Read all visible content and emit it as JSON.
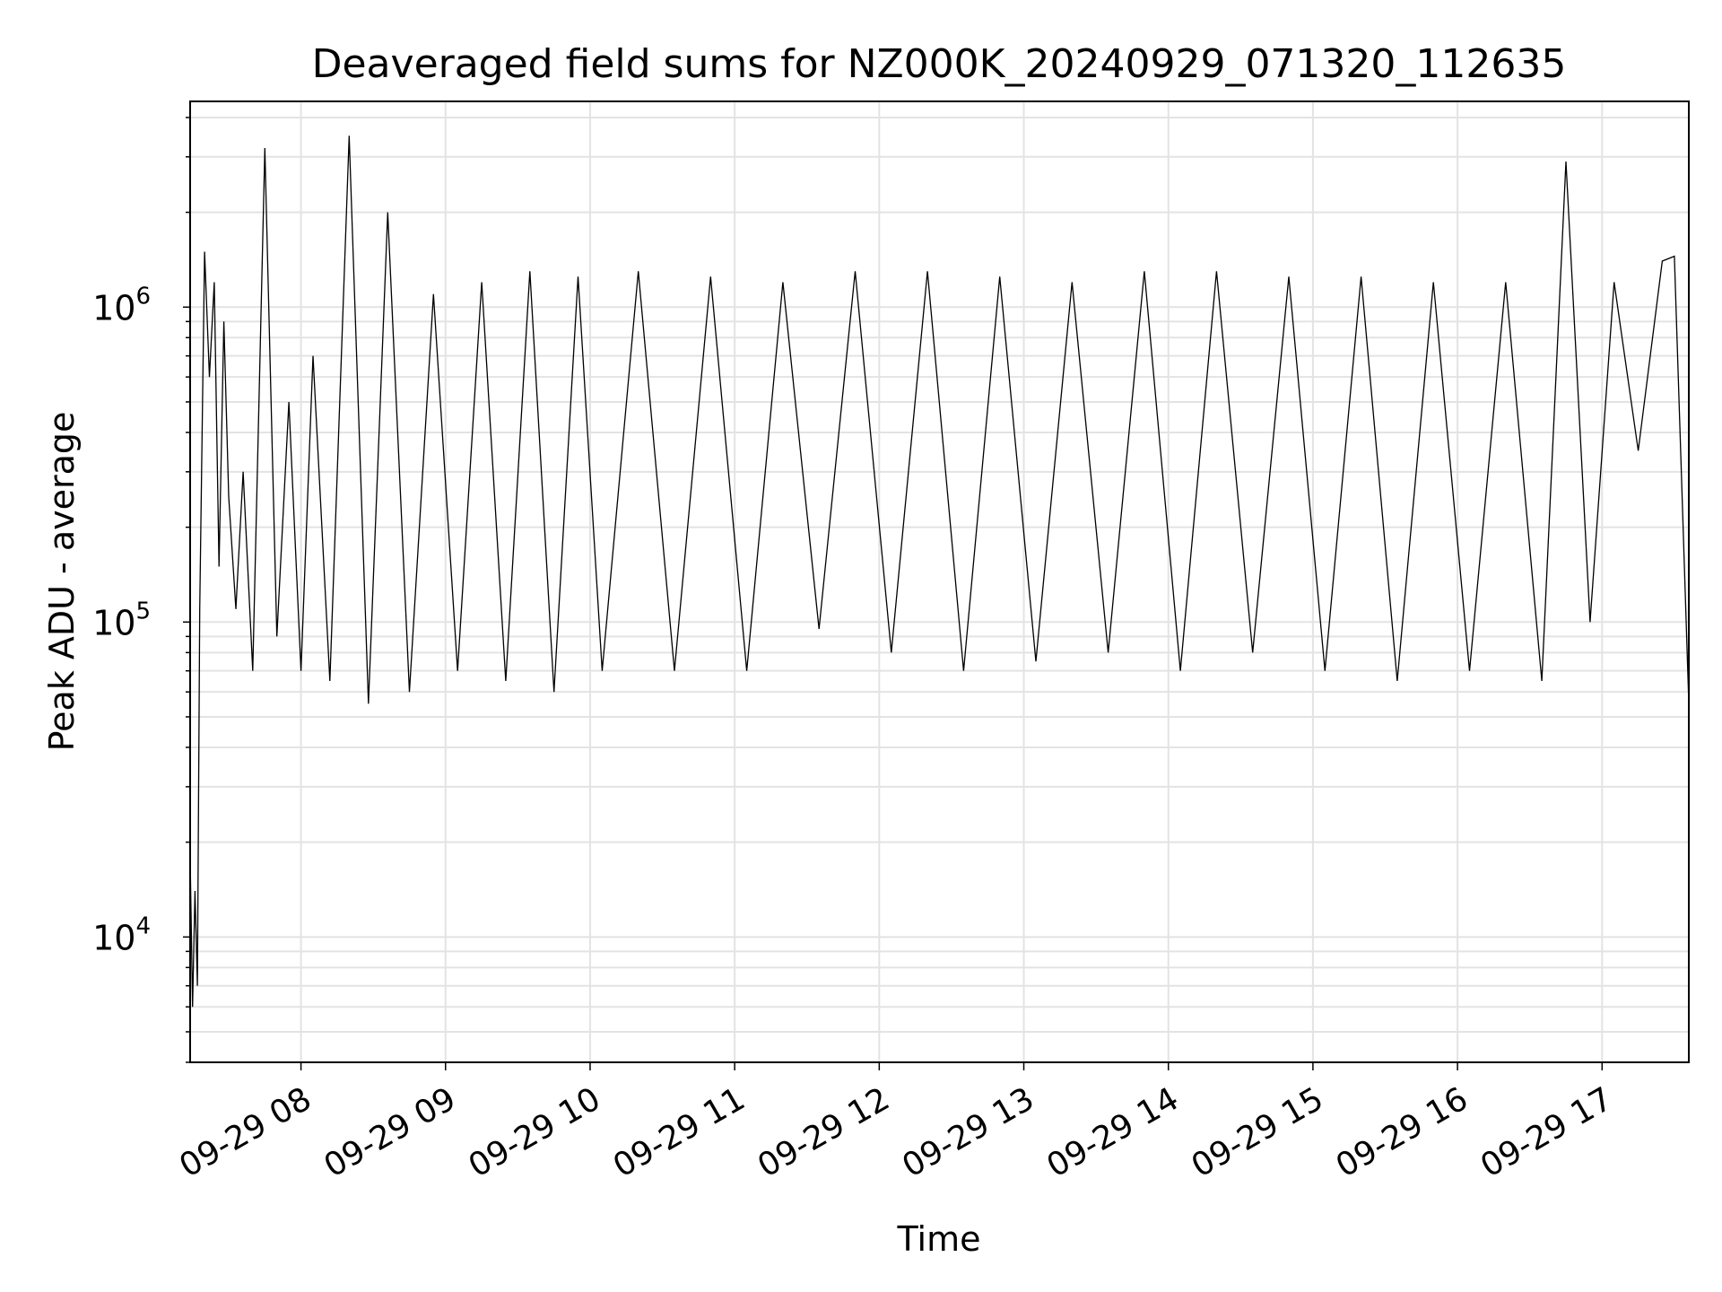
{
  "chart_data": {
    "type": "line",
    "title": "Deaveraged field sums for NZ000K_20240929_071320_112635",
    "xlabel": "Time",
    "ylabel": "Peak ADU - average",
    "yscale": "log",
    "ylim": [
      4000,
      4500000
    ],
    "xlim": [
      "2024-09-29 07:14",
      "2024-09-29 17:36"
    ],
    "grid": true,
    "line_color": "#000000",
    "x_ticks": [
      "2024-09-29 08:00",
      "2024-09-29 09:00",
      "2024-09-29 10:00",
      "2024-09-29 11:00",
      "2024-09-29 12:00",
      "2024-09-29 13:00",
      "2024-09-29 14:00",
      "2024-09-29 15:00",
      "2024-09-29 16:00",
      "2024-09-29 17:00"
    ],
    "x_tick_labels": [
      "09-29 08",
      "09-29 09",
      "09-29 10",
      "09-29 11",
      "09-29 12",
      "09-29 13",
      "09-29 14",
      "09-29 15",
      "09-29 16",
      "09-29 17"
    ],
    "y_ticks": [
      {
        "value": 10000,
        "base": "10",
        "exp": "4"
      },
      {
        "value": 100000,
        "base": "10",
        "exp": "5"
      },
      {
        "value": 1000000,
        "base": "10",
        "exp": "6"
      }
    ],
    "series": [
      {
        "x": [
          "2024-09-29 07:14",
          "2024-09-29 07:15",
          "2024-09-29 07:16",
          "2024-09-29 07:17",
          "2024-09-29 07:18",
          "2024-09-29 07:20",
          "2024-09-29 07:22",
          "2024-09-29 07:24",
          "2024-09-29 07:26",
          "2024-09-29 07:28",
          "2024-09-29 07:30",
          "2024-09-29 07:33",
          "2024-09-29 07:36",
          "2024-09-29 07:40",
          "2024-09-29 07:45",
          "2024-09-29 07:50",
          "2024-09-29 07:55",
          "2024-09-29 08:00",
          "2024-09-29 08:05",
          "2024-09-29 08:12",
          "2024-09-29 08:20",
          "2024-09-29 08:28",
          "2024-09-29 08:36",
          "2024-09-29 08:45",
          "2024-09-29 08:55",
          "2024-09-29 09:05",
          "2024-09-29 09:15",
          "2024-09-29 09:25",
          "2024-09-29 09:35",
          "2024-09-29 09:45",
          "2024-09-29 09:55",
          "2024-09-29 10:05",
          "2024-09-29 10:20",
          "2024-09-29 10:35",
          "2024-09-29 10:50",
          "2024-09-29 11:05",
          "2024-09-29 11:20",
          "2024-09-29 11:35",
          "2024-09-29 11:50",
          "2024-09-29 12:05",
          "2024-09-29 12:20",
          "2024-09-29 12:35",
          "2024-09-29 12:50",
          "2024-09-29 13:05",
          "2024-09-29 13:20",
          "2024-09-29 13:35",
          "2024-09-29 13:50",
          "2024-09-29 14:05",
          "2024-09-29 14:20",
          "2024-09-29 14:35",
          "2024-09-29 14:50",
          "2024-09-29 15:05",
          "2024-09-29 15:20",
          "2024-09-29 15:35",
          "2024-09-29 15:50",
          "2024-09-29 16:05",
          "2024-09-29 16:20",
          "2024-09-29 16:35",
          "2024-09-29 16:45",
          "2024-09-29 16:55",
          "2024-09-29 17:05",
          "2024-09-29 17:15",
          "2024-09-29 17:25",
          "2024-09-29 17:30",
          "2024-09-29 17:36"
        ],
        "y": [
          18000,
          6000,
          14000,
          7000,
          110000,
          1500000,
          600000,
          1200000,
          150000,
          900000,
          250000,
          110000,
          300000,
          70000,
          3200000,
          90000,
          500000,
          70000,
          700000,
          65000,
          3500000,
          55000,
          2000000,
          60000,
          1100000,
          70000,
          1200000,
          65000,
          1300000,
          60000,
          1250000,
          70000,
          1300000,
          70000,
          1250000,
          70000,
          1200000,
          95000,
          1300000,
          80000,
          1300000,
          70000,
          1250000,
          75000,
          1200000,
          80000,
          1300000,
          70000,
          1300000,
          80000,
          1250000,
          70000,
          1250000,
          65000,
          1200000,
          70000,
          1200000,
          65000,
          2900000,
          100000,
          1200000,
          350000,
          1400000,
          1450000,
          55000
        ]
      }
    ]
  }
}
